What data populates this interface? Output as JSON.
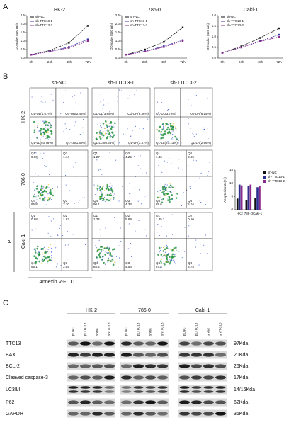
{
  "panel_labels": [
    "A",
    "B",
    "C"
  ],
  "chart_data": [
    {
      "type": "line",
      "title": "HK-2",
      "y_label": "OD value (450 nm)",
      "categories": [
        "0h",
        "24h",
        "48h",
        "72h"
      ],
      "ylim": [
        0,
        2.5
      ],
      "yticks": [
        {
          "value": 0,
          "label": "0.0"
        },
        {
          "value": 0.5,
          "label": "0.5"
        },
        {
          "value": 1,
          "label": "1.0"
        },
        {
          "value": 1.5,
          "label": "1.5"
        },
        {
          "value": 2,
          "label": "2.0"
        },
        {
          "value": 2.5,
          "label": "2.5"
        }
      ],
      "series": [
        {
          "name": "sh-NC",
          "color": "#111111",
          "values": [
            0.2,
            0.45,
            0.9,
            1.9
          ]
        },
        {
          "name": "sh-TTC13-1",
          "color": "#3a3aa8",
          "values": [
            0.2,
            0.4,
            0.65,
            1.1
          ]
        },
        {
          "name": "sh-TTC13-2",
          "color": "#8b2a8b",
          "values": [
            0.2,
            0.38,
            0.6,
            1.0
          ]
        }
      ]
    },
    {
      "type": "line",
      "title": "786-0",
      "y_label": "OD value (450 nm)",
      "categories": [
        "0h",
        "24h",
        "48h",
        "72h"
      ],
      "ylim": [
        0,
        2.5
      ],
      "yticks": [
        {
          "value": 0,
          "label": "0.0"
        },
        {
          "value": 0.5,
          "label": "0.5"
        },
        {
          "value": 1,
          "label": "1.0"
        },
        {
          "value": 1.5,
          "label": "1.5"
        },
        {
          "value": 2,
          "label": "2.0"
        },
        {
          "value": 2.5,
          "label": "2.5"
        }
      ],
      "series": [
        {
          "name": "sh-NC",
          "color": "#111111",
          "values": [
            0.2,
            0.5,
            0.95,
            1.8
          ]
        },
        {
          "name": "sh-TTC13-1",
          "color": "#3a3aa8",
          "values": [
            0.2,
            0.4,
            0.7,
            1.05
          ]
        },
        {
          "name": "sh-TTC13-2",
          "color": "#8b2a8b",
          "values": [
            0.2,
            0.38,
            0.65,
            1.0
          ]
        }
      ]
    },
    {
      "type": "line",
      "title": "Caki-1",
      "y_label": "OD value (450 nm)",
      "categories": [
        "0h",
        "24h",
        "48h",
        "72h"
      ],
      "ylim": [
        0,
        2.0
      ],
      "yticks": [
        {
          "value": 0,
          "label": "0.0"
        },
        {
          "value": 0.5,
          "label": "0.5"
        },
        {
          "value": 1,
          "label": "1.0"
        },
        {
          "value": 1.5,
          "label": "1.5"
        },
        {
          "value": 2,
          "label": "2.0"
        }
      ],
      "series": [
        {
          "name": "sh-NC",
          "color": "#111111",
          "values": [
            0.25,
            0.55,
            0.95,
            1.4
          ]
        },
        {
          "name": "sh-TTC13-1",
          "color": "#3a3aa8",
          "values": [
            0.25,
            0.5,
            0.8,
            1.1
          ]
        },
        {
          "name": "sh-TTC13-2",
          "color": "#8b2a8b",
          "values": [
            0.25,
            0.5,
            0.78,
            1.0
          ]
        }
      ]
    },
    {
      "type": "bar",
      "y_label": "Apoptosis rate(%)",
      "categories": [
        "HK2",
        "786-O",
        "Caki-1"
      ],
      "ylim": [
        0,
        15
      ],
      "yticks": [
        0,
        5,
        10,
        15
      ],
      "series": [
        {
          "name": "sh-NC",
          "color": "#111111",
          "values": [
            4.2,
            3.5,
            4.5
          ]
        },
        {
          "name": "sh-TTC13-1",
          "color": "#2e2e8c",
          "values": [
            9.5,
            9.0,
            8.5
          ]
        },
        {
          "name": "sh-TTC13-2",
          "color": "#8b2a8b",
          "values": [
            9.2,
            9.5,
            9.0
          ]
        }
      ]
    }
  ],
  "flow": {
    "columns": [
      "sh-NC",
      "sh-TTC13-1",
      "sh-TTC13-2"
    ],
    "rows": [
      "HK-2",
      "786-0",
      "Caki-1"
    ],
    "y_label": "PI",
    "x_label": "Annexin V-FITC",
    "plots": [
      [
        {
          "quadrants": [
            [
              "Q1-UL(1.67%)"
            ],
            [
              "Q1-UR(2.48%)"
            ],
            [
              "Q1-LL(93.76%)"
            ],
            [
              "Q1-LR(1.69%)"
            ]
          ]
        },
        {
          "quadrants": [
            [
              "Q1-UL(3.89%)"
            ],
            [
              "Q1-UR(6.36%)"
            ],
            [
              "Q1-LL(86.38%)"
            ],
            [
              "Q1-LR(3.37%)"
            ]
          ]
        },
        {
          "quadrants": [
            [
              "Q1-UL(3.78%)"
            ],
            [
              "Q1-UR(6.15%)"
            ],
            [
              "Q1-LL(87.13%)"
            ],
            [
              "Q1-LR(2.96%)"
            ]
          ]
        }
      ],
      [
        {
          "quadrants": [
            [
              "Q1",
              "0.90"
            ],
            [
              "Q2",
              "1.14"
            ],
            [
              "Q4",
              "95.8"
            ],
            [
              "Q3",
              "2.20"
            ]
          ]
        },
        {
          "quadrants": [
            [
              "Q1",
              "1.27"
            ],
            [
              "Q2",
              "4.25"
            ],
            [
              "Q4",
              "90.1"
            ],
            [
              "Q3",
              "4.34"
            ]
          ]
        },
        {
          "quadrants": [
            [
              "Q1",
              "1.46"
            ],
            [
              "Q2",
              "3.95"
            ],
            [
              "Q4",
              "89.6"
            ],
            [
              "Q3",
              "5.04"
            ]
          ]
        }
      ],
      [
        {
          "quadrants": [
            [
              "Q1",
              "0.68"
            ],
            [
              "Q2",
              "1.82"
            ],
            [
              "Q4",
              "95.1"
            ],
            [
              "Q3",
              "2.35"
            ]
          ]
        },
        {
          "quadrants": [
            [
              "Q1",
              "1.34"
            ],
            [
              "Q2",
              "5.89"
            ],
            [
              "Q4",
              "88.2"
            ],
            [
              "Q3",
              "4.54"
            ]
          ]
        },
        {
          "quadrants": [
            [
              "Q1",
              "1.35"
            ],
            [
              "Q2",
              "0.60"
            ],
            [
              "Q4",
              "87.3"
            ],
            [
              "Q3",
              "3.75"
            ]
          ]
        }
      ]
    ]
  },
  "blot": {
    "groups": [
      {
        "name": "HK-2",
        "lanes": [
          "pLNC",
          "pLTTC13",
          "shNC",
          "shTTC13"
        ]
      },
      {
        "name": "786-0",
        "lanes": [
          "pLNC",
          "pLTTC13",
          "shNC",
          "shTTC13"
        ]
      },
      {
        "name": "Caki-1",
        "lanes": [
          "pLNC",
          "pLTTC13",
          "shNC",
          "shTTC13"
        ]
      }
    ],
    "rows": [
      {
        "protein": "TTC13",
        "size": "97Kda"
      },
      {
        "protein": "BAX",
        "size": "20Kda"
      },
      {
        "protein": "BCL-2",
        "size": "26Kda"
      },
      {
        "protein": "Cleaved caspase-3",
        "size": "17Kda"
      },
      {
        "protein": "LC3Ⅱ/Ⅰ",
        "size": "14/16Kda"
      },
      {
        "protein": "P62",
        "size": "62Kda"
      },
      {
        "protein": "GAPDH",
        "size": "36Kda"
      }
    ]
  }
}
